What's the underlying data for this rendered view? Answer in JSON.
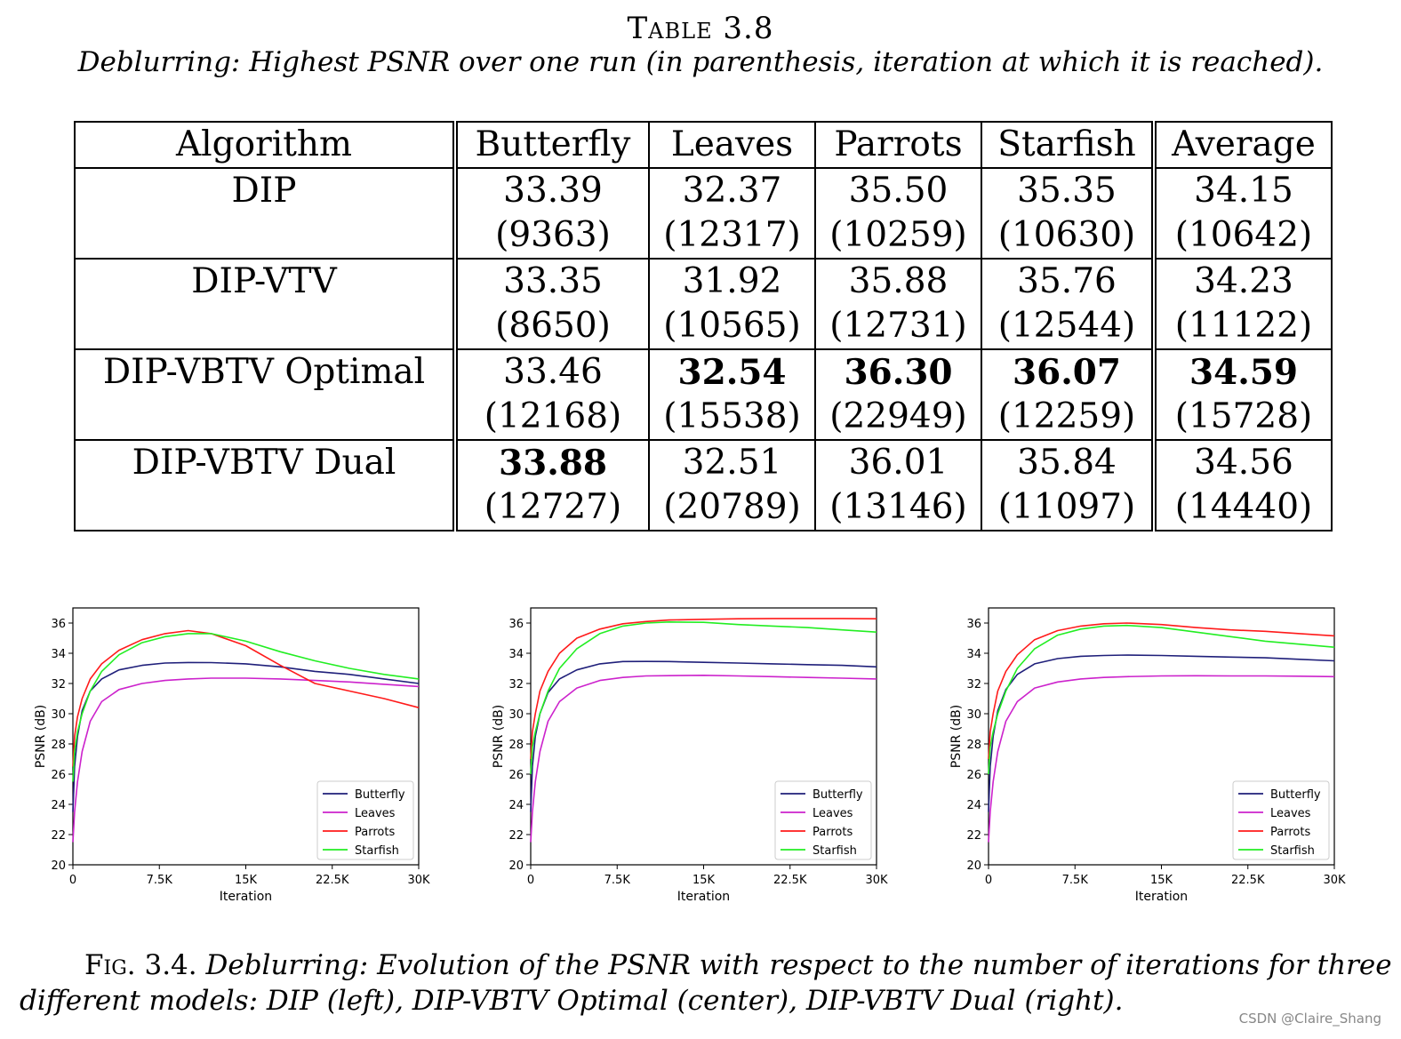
{
  "table": {
    "label": "Table 3.8",
    "description": "Deblurring: Highest PSNR over one run (in parenthesis, iteration at which it is reached).",
    "headers": [
      "Algorithm",
      "Butterfly",
      "Leaves",
      "Parrots",
      "Starfish",
      "Average"
    ],
    "rows": [
      {
        "algorithm": "DIP",
        "cells": [
          {
            "value": "33.39",
            "iter": "(9363)",
            "bold": false
          },
          {
            "value": "32.37",
            "iter": "(12317)",
            "bold": false
          },
          {
            "value": "35.50",
            "iter": "(10259)",
            "bold": false
          },
          {
            "value": "35.35",
            "iter": "(10630)",
            "bold": false
          },
          {
            "value": "34.15",
            "iter": "(10642)",
            "bold": false
          }
        ]
      },
      {
        "algorithm": "DIP-VTV",
        "cells": [
          {
            "value": "33.35",
            "iter": "(8650)",
            "bold": false
          },
          {
            "value": "31.92",
            "iter": "(10565)",
            "bold": false
          },
          {
            "value": "35.88",
            "iter": "(12731)",
            "bold": false
          },
          {
            "value": "35.76",
            "iter": "(12544)",
            "bold": false
          },
          {
            "value": "34.23",
            "iter": "(11122)",
            "bold": false
          }
        ]
      },
      {
        "algorithm": "DIP-VBTV Optimal",
        "cells": [
          {
            "value": "33.46",
            "iter": "(12168)",
            "bold": false
          },
          {
            "value": "32.54",
            "iter": "(15538)",
            "bold": true
          },
          {
            "value": "36.30",
            "iter": "(22949)",
            "bold": true
          },
          {
            "value": "36.07",
            "iter": "(12259)",
            "bold": true
          },
          {
            "value": "34.59",
            "iter": "(15728)",
            "bold": true
          }
        ]
      },
      {
        "algorithm": "DIP-VBTV Dual",
        "cells": [
          {
            "value": "33.88",
            "iter": "(12727)",
            "bold": true
          },
          {
            "value": "32.51",
            "iter": "(20789)",
            "bold": false
          },
          {
            "value": "36.01",
            "iter": "(13146)",
            "bold": false
          },
          {
            "value": "35.84",
            "iter": "(11097)",
            "bold": false
          },
          {
            "value": "34.56",
            "iter": "(14440)",
            "bold": false
          }
        ]
      }
    ]
  },
  "chart_data": [
    {
      "type": "line",
      "title": "",
      "xlabel": "Iteration",
      "ylabel": "PSNR (dB)",
      "xlim": [
        0,
        30000
      ],
      "ylim": [
        20,
        37
      ],
      "x_ticks": [
        0,
        7500,
        15000,
        22500,
        30000
      ],
      "x_tick_labels": [
        "0",
        "7.5K",
        "15K",
        "22.5K",
        "30K"
      ],
      "y_ticks": [
        20,
        22,
        24,
        26,
        28,
        30,
        32,
        34,
        36
      ],
      "legend_position": "bottom-right",
      "grid": false,
      "x": [
        0,
        150,
        400,
        800,
        1500,
        2500,
        4000,
        6000,
        8000,
        10000,
        12000,
        15000,
        18000,
        21000,
        24000,
        27000,
        30000
      ],
      "series": [
        {
          "name": "Butterfly",
          "color": "#1f1f7a",
          "values": [
            23.5,
            26.5,
            28.5,
            30.2,
            31.5,
            32.3,
            32.9,
            33.2,
            33.35,
            33.39,
            33.38,
            33.3,
            33.1,
            32.8,
            32.6,
            32.3,
            32.0
          ]
        },
        {
          "name": "Leaves",
          "color": "#cc22cc",
          "values": [
            21.5,
            23.5,
            25.5,
            27.5,
            29.5,
            30.8,
            31.6,
            32.0,
            32.2,
            32.3,
            32.35,
            32.35,
            32.3,
            32.2,
            32.1,
            31.95,
            31.8
          ]
        },
        {
          "name": "Parrots",
          "color": "#ff1a1a",
          "values": [
            26.5,
            28.5,
            29.8,
            31.0,
            32.3,
            33.3,
            34.2,
            34.9,
            35.3,
            35.5,
            35.3,
            34.5,
            33.2,
            32.0,
            31.5,
            31.0,
            30.4
          ]
        },
        {
          "name": "Starfish",
          "color": "#22ee22",
          "values": [
            25.5,
            27.5,
            28.8,
            30.0,
            31.5,
            32.8,
            33.9,
            34.7,
            35.1,
            35.3,
            35.3,
            34.8,
            34.1,
            33.5,
            33.0,
            32.6,
            32.3
          ]
        }
      ]
    },
    {
      "type": "line",
      "title": "",
      "xlabel": "Iteration",
      "ylabel": "PSNR (dB)",
      "xlim": [
        0,
        30000
      ],
      "ylim": [
        20,
        37
      ],
      "x_ticks": [
        0,
        7500,
        15000,
        22500,
        30000
      ],
      "x_tick_labels": [
        "0",
        "7.5K",
        "15K",
        "22.5K",
        "30K"
      ],
      "y_ticks": [
        20,
        22,
        24,
        26,
        28,
        30,
        32,
        34,
        36
      ],
      "legend_position": "bottom-right",
      "grid": false,
      "x": [
        0,
        150,
        400,
        800,
        1500,
        2500,
        4000,
        6000,
        8000,
        10000,
        12000,
        15000,
        18000,
        21000,
        24000,
        27000,
        30000
      ],
      "series": [
        {
          "name": "Butterfly",
          "color": "#1f1f7a",
          "values": [
            23.5,
            26.5,
            28.5,
            30.0,
            31.4,
            32.3,
            32.9,
            33.3,
            33.45,
            33.46,
            33.45,
            33.4,
            33.35,
            33.3,
            33.25,
            33.2,
            33.1
          ]
        },
        {
          "name": "Leaves",
          "color": "#cc22cc",
          "values": [
            21.5,
            23.5,
            25.5,
            27.5,
            29.5,
            30.8,
            31.7,
            32.2,
            32.4,
            32.5,
            32.52,
            32.54,
            32.5,
            32.45,
            32.4,
            32.35,
            32.3
          ]
        },
        {
          "name": "Parrots",
          "color": "#ff1a1a",
          "values": [
            27.0,
            28.8,
            30.0,
            31.5,
            32.8,
            34.0,
            35.0,
            35.6,
            35.95,
            36.1,
            36.2,
            36.25,
            36.28,
            36.3,
            36.3,
            36.3,
            36.28
          ]
        },
        {
          "name": "Starfish",
          "color": "#22ee22",
          "values": [
            26.0,
            27.8,
            28.8,
            30.0,
            31.5,
            33.0,
            34.3,
            35.3,
            35.8,
            36.0,
            36.07,
            36.05,
            35.9,
            35.8,
            35.7,
            35.55,
            35.4
          ]
        }
      ]
    },
    {
      "type": "line",
      "title": "",
      "xlabel": "Iteration",
      "ylabel": "PSNR (dB)",
      "xlim": [
        0,
        30000
      ],
      "ylim": [
        20,
        37
      ],
      "x_ticks": [
        0,
        7500,
        15000,
        22500,
        30000
      ],
      "x_tick_labels": [
        "0",
        "7.5K",
        "15K",
        "22.5K",
        "30K"
      ],
      "y_ticks": [
        20,
        22,
        24,
        26,
        28,
        30,
        32,
        34,
        36
      ],
      "legend_position": "bottom-right",
      "grid": false,
      "x": [
        0,
        150,
        400,
        800,
        1500,
        2500,
        4000,
        6000,
        8000,
        10000,
        12000,
        15000,
        18000,
        21000,
        24000,
        27000,
        30000
      ],
      "series": [
        {
          "name": "Butterfly",
          "color": "#1f1f7a",
          "values": [
            23.5,
            26.5,
            28.5,
            30.2,
            31.6,
            32.6,
            33.3,
            33.65,
            33.8,
            33.85,
            33.88,
            33.85,
            33.8,
            33.75,
            33.7,
            33.6,
            33.5
          ]
        },
        {
          "name": "Leaves",
          "color": "#cc22cc",
          "values": [
            21.5,
            23.5,
            25.5,
            27.5,
            29.5,
            30.8,
            31.7,
            32.1,
            32.3,
            32.4,
            32.45,
            32.5,
            32.51,
            32.5,
            32.5,
            32.48,
            32.45
          ]
        },
        {
          "name": "Parrots",
          "color": "#ff1a1a",
          "values": [
            27.0,
            28.8,
            30.0,
            31.5,
            32.8,
            33.9,
            34.9,
            35.5,
            35.8,
            35.95,
            36.0,
            35.9,
            35.7,
            35.55,
            35.45,
            35.3,
            35.15
          ]
        },
        {
          "name": "Starfish",
          "color": "#22ee22",
          "values": [
            26.0,
            27.8,
            28.8,
            30.0,
            31.5,
            33.0,
            34.3,
            35.2,
            35.6,
            35.8,
            35.84,
            35.7,
            35.4,
            35.1,
            34.8,
            34.6,
            34.4
          ]
        }
      ]
    }
  ],
  "figure": {
    "label": "Fig. 3.4.",
    "caption_line1": "Deblurring: Evolution of the PSNR with respect to the number of iterations for three",
    "caption_line2": "different models: DIP (left), DIP-VBTV Optimal (center), DIP-VBTV Dual (right)."
  },
  "watermark": "CSDN @Claire_Shang"
}
